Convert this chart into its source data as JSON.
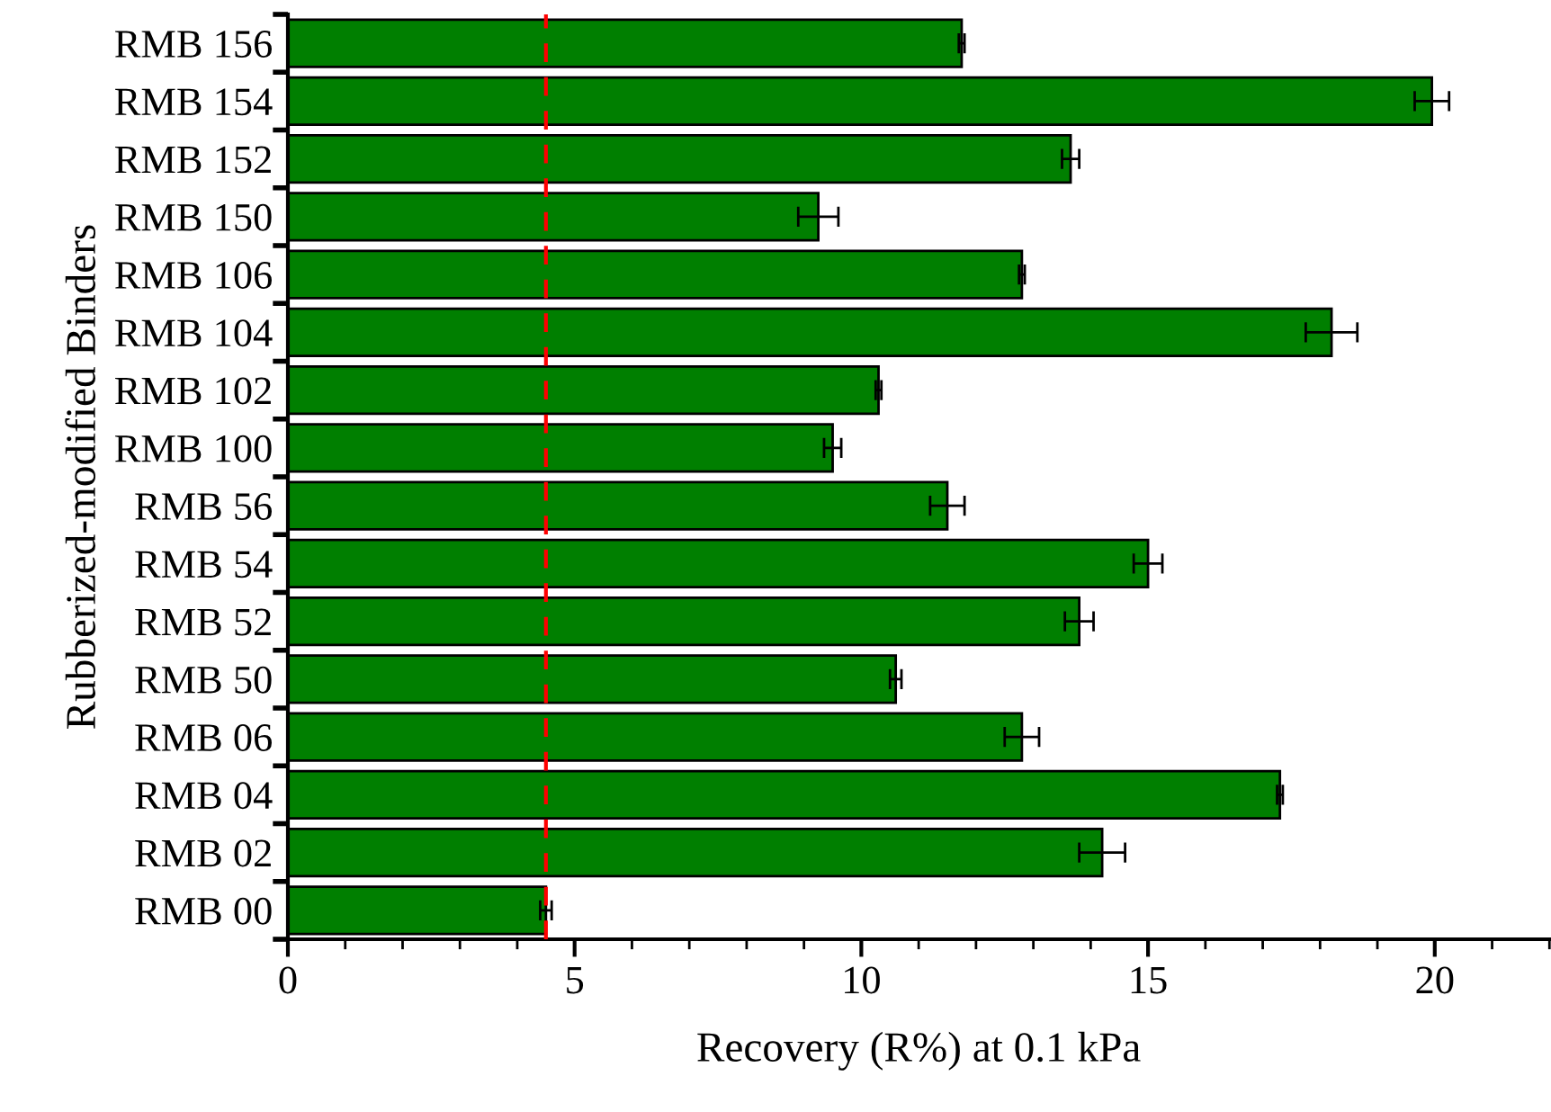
{
  "chart_data": {
    "type": "bar",
    "orientation": "horizontal",
    "xlabel": "Recovery (R%) at 0.1 kPa",
    "ylabel": "Rubberized-modified Binders",
    "categories": [
      "RMB 156",
      "RMB 154",
      "RMB 152",
      "RMB 150",
      "RMB 106",
      "RMB 104",
      "RMB 102",
      "RMB 100",
      "RMB 56",
      "RMB 54",
      "RMB 52",
      "RMB 50",
      "RMB 06",
      "RMB 04",
      "RMB 02",
      "RMB 00"
    ],
    "values": [
      11.75,
      19.95,
      13.65,
      9.25,
      12.8,
      18.2,
      10.3,
      9.5,
      11.5,
      15.0,
      13.8,
      10.6,
      12.8,
      17.3,
      14.2,
      4.5
    ],
    "errors": [
      0.05,
      0.3,
      0.15,
      0.35,
      0.05,
      0.45,
      0.05,
      0.15,
      0.3,
      0.25,
      0.25,
      0.1,
      0.3,
      0.05,
      0.4,
      0.1
    ],
    "color": "#007f00",
    "xlim": [
      0,
      22
    ],
    "xticks": [
      0,
      5,
      10,
      15,
      20
    ],
    "ref_lines": [
      {
        "axis": "x",
        "value": 4.5,
        "color": "#ff0000",
        "line_style": "dashed"
      }
    ],
    "grid": false,
    "legend": false
  }
}
